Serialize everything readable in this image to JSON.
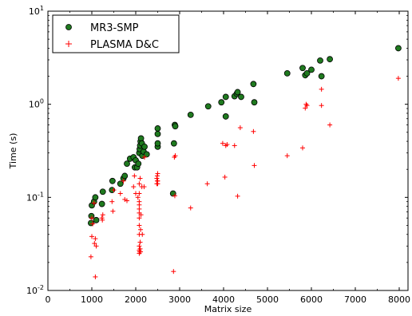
{
  "chart_data": {
    "type": "scatter",
    "title": "",
    "xlabel": "Matrix size",
    "ylabel": "Time (s)",
    "xlim": [
      0,
      8200
    ],
    "ylim": [
      0.01,
      10
    ],
    "yscale": "log",
    "grid": false,
    "legend_position": "top-left",
    "x_ticks": [
      0,
      1000,
      2000,
      3000,
      4000,
      5000,
      6000,
      7000,
      8000
    ],
    "x_tick_labels": [
      "0",
      "1000",
      "2000",
      "3000",
      "4000",
      "5000",
      "6000",
      "7000",
      "8000"
    ],
    "y_ticks": [
      0.01,
      0.1,
      1,
      10
    ],
    "y_tick_labels": [
      {
        "base": "10",
        "exp": "-2"
      },
      {
        "base": "10",
        "exp": "-1"
      },
      {
        "base": "10",
        "exp": "0"
      },
      {
        "base": "10",
        "exp": "1"
      }
    ],
    "series": [
      {
        "name": "MR3-SMP",
        "marker": "circle",
        "color": "#1f7a1f",
        "edge_color": "#000000",
        "points": [
          [
            980,
            0.053
          ],
          [
            990,
            0.063
          ],
          [
            1000,
            0.082
          ],
          [
            1050,
            0.09
          ],
          [
            1080,
            0.1
          ],
          [
            1100,
            0.057
          ],
          [
            1230,
            0.085
          ],
          [
            1250,
            0.115
          ],
          [
            1460,
            0.12
          ],
          [
            1470,
            0.15
          ],
          [
            1650,
            0.14
          ],
          [
            1720,
            0.16
          ],
          [
            1750,
            0.17
          ],
          [
            1800,
            0.23
          ],
          [
            1870,
            0.26
          ],
          [
            1950,
            0.27
          ],
          [
            1980,
            0.21
          ],
          [
            2000,
            0.25
          ],
          [
            2030,
            0.21
          ],
          [
            2060,
            0.23
          ],
          [
            2080,
            0.3
          ],
          [
            2090,
            0.33
          ],
          [
            2100,
            0.36
          ],
          [
            2110,
            0.4
          ],
          [
            2120,
            0.43
          ],
          [
            2140,
            0.38
          ],
          [
            2150,
            0.28
          ],
          [
            2180,
            0.31
          ],
          [
            2200,
            0.35
          ],
          [
            2250,
            0.29
          ],
          [
            2500,
            0.48
          ],
          [
            2500,
            0.55
          ],
          [
            2500,
            0.35
          ],
          [
            2500,
            0.38
          ],
          [
            2850,
            0.11
          ],
          [
            2870,
            0.38
          ],
          [
            2890,
            0.6
          ],
          [
            2900,
            0.58
          ],
          [
            3250,
            0.77
          ],
          [
            3650,
            0.95
          ],
          [
            3950,
            1.05
          ],
          [
            4050,
            1.2
          ],
          [
            4050,
            0.74
          ],
          [
            4250,
            1.22
          ],
          [
            4300,
            1.3
          ],
          [
            4320,
            1.35
          ],
          [
            4400,
            1.2
          ],
          [
            4680,
            1.65
          ],
          [
            4700,
            1.05
          ],
          [
            5450,
            2.15
          ],
          [
            5800,
            2.45
          ],
          [
            5860,
            2.05
          ],
          [
            5900,
            2.15
          ],
          [
            6000,
            2.35
          ],
          [
            6200,
            2.95
          ],
          [
            6230,
            2.0
          ],
          [
            6420,
            3.05
          ],
          [
            7980,
            4.0
          ]
        ]
      },
      {
        "name": "PLASMA D&C",
        "marker": "plus",
        "color": "#ff0000",
        "points": [
          [
            980,
            0.023
          ],
          [
            1000,
            0.038
          ],
          [
            1000,
            0.06
          ],
          [
            1020,
            0.052
          ],
          [
            1050,
            0.087
          ],
          [
            1060,
            0.032
          ],
          [
            1080,
            0.014
          ],
          [
            1080,
            0.036
          ],
          [
            1100,
            0.03
          ],
          [
            1230,
            0.06
          ],
          [
            1240,
            0.057
          ],
          [
            1250,
            0.065
          ],
          [
            1460,
            0.09
          ],
          [
            1480,
            0.071
          ],
          [
            1500,
            0.12
          ],
          [
            1650,
            0.11
          ],
          [
            1720,
            0.15
          ],
          [
            1750,
            0.095
          ],
          [
            1800,
            0.092
          ],
          [
            1950,
            0.13
          ],
          [
            1970,
            0.17
          ],
          [
            2000,
            0.11
          ],
          [
            2050,
            0.1
          ],
          [
            2080,
            0.025
          ],
          [
            2080,
            0.027
          ],
          [
            2080,
            0.03
          ],
          [
            2080,
            0.04
          ],
          [
            2080,
            0.05
          ],
          [
            2080,
            0.06
          ],
          [
            2080,
            0.068
          ],
          [
            2080,
            0.075
          ],
          [
            2080,
            0.083
          ],
          [
            2080,
            0.09
          ],
          [
            2080,
            0.11
          ],
          [
            2080,
            0.14
          ],
          [
            2090,
            0.026
          ],
          [
            2100,
            0.028
          ],
          [
            2100,
            0.033
          ],
          [
            2100,
            0.16
          ],
          [
            2110,
            0.026
          ],
          [
            2110,
            0.045
          ],
          [
            2120,
            0.065
          ],
          [
            2140,
            0.13
          ],
          [
            2150,
            0.04
          ],
          [
            2190,
            0.13
          ],
          [
            2200,
            0.27
          ],
          [
            2480,
            0.14
          ],
          [
            2480,
            0.16
          ],
          [
            2490,
            0.15
          ],
          [
            2490,
            0.17
          ],
          [
            2500,
            0.14
          ],
          [
            2500,
            0.15
          ],
          [
            2500,
            0.18
          ],
          [
            2860,
            0.016
          ],
          [
            2880,
            0.27
          ],
          [
            2890,
            0.104
          ],
          [
            2900,
            0.28
          ],
          [
            3250,
            0.077
          ],
          [
            3630,
            0.14
          ],
          [
            3980,
            0.38
          ],
          [
            4030,
            0.165
          ],
          [
            4050,
            0.36
          ],
          [
            4080,
            0.37
          ],
          [
            4250,
            0.36
          ],
          [
            4320,
            0.103
          ],
          [
            4380,
            0.56
          ],
          [
            4680,
            0.51
          ],
          [
            4700,
            0.22
          ],
          [
            5450,
            0.28
          ],
          [
            5800,
            0.34
          ],
          [
            5860,
            0.91
          ],
          [
            5880,
            1.0
          ],
          [
            5900,
            0.97
          ],
          [
            6230,
            0.97
          ],
          [
            6230,
            1.45
          ],
          [
            6420,
            0.6
          ],
          [
            7980,
            1.9
          ]
        ]
      }
    ]
  }
}
